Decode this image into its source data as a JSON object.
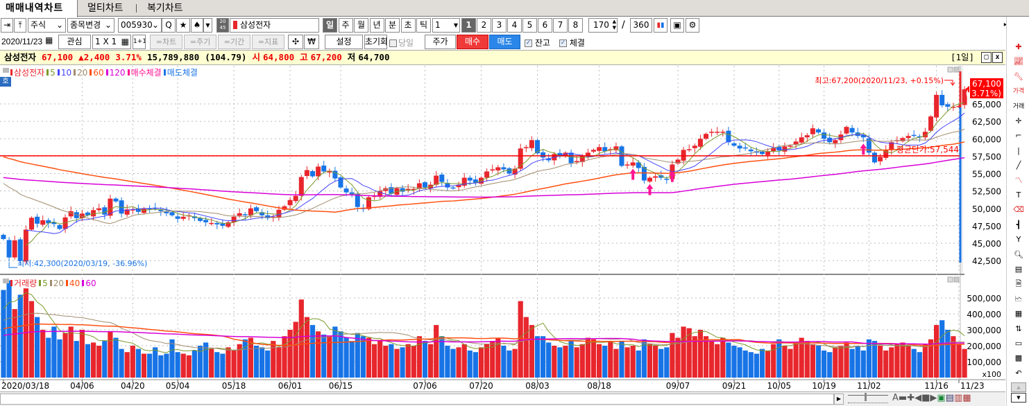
{
  "tabs": [
    "매매내역차트",
    "멀티차트",
    "복기차트"
  ],
  "toolbar": {
    "market": "주식",
    "change_stock": "종목변경",
    "code": "005930",
    "stock_name": "삼성전자",
    "mini_icon": "20\n45",
    "periods": [
      "일",
      "주",
      "월",
      "년",
      "분",
      "초",
      "틱"
    ],
    "period_count": "1",
    "nums": [
      "1",
      "2",
      "3",
      "4",
      "5",
      "6",
      "7",
      "8"
    ],
    "bars": "170",
    "total": "360",
    "slash": "/",
    "u_label": "U",
    "date": "2020/11/23",
    "watch": "관심",
    "layout": "1 X 1",
    "one_plus": "1+1",
    "eq_buttons": [
      "=차트",
      "=주기",
      "=기간",
      "=지표"
    ],
    "settings": "설정",
    "reset": "초기화",
    "today": "당일",
    "price": "주가",
    "buy": "매수",
    "sell": "매도",
    "balance": "잔고",
    "filled": "체결"
  },
  "info": {
    "name": "삼성전자",
    "price": "67,100",
    "change": "▲2,400",
    "pct": "3.71%",
    "volume": "15,789,880",
    "vol_ratio": "(104.79)",
    "open_label": "시",
    "open": "64,800",
    "high_label": "고",
    "high": "67,200",
    "low_label": "저",
    "low": "64,700",
    "period_tag": "[1일]"
  },
  "price_legend": [
    "삼성전자",
    "5",
    "10",
    "20",
    "60",
    "120",
    "매수체결",
    "매도체결"
  ],
  "volume_legend": [
    "거래량",
    "5",
    "20",
    "40",
    "60"
  ],
  "colors": {
    "up": "#e8262d",
    "down": "#1874e6",
    "ma5": "#7a9a2a",
    "ma10": "#4444ff",
    "ma20": "#a08c6c",
    "ma60": "#ff5010",
    "ma120": "#d800d8",
    "buy_arrow": "#ff1493",
    "avg": "#ff0000"
  },
  "annotations": {
    "high": "최고:67,200(2020/11/23, +0.15%)",
    "low": "최저:42,300(2020/03/19, -36.96%)",
    "avg": "평균단가:57,544",
    "avg_value": 57544,
    "high_value": 67200,
    "low_value": 42300,
    "current": "67,100",
    "current_pct": "( 3.71%)"
  },
  "chart_data": {
    "type": "candlestick",
    "price_ticks": [
      "65,000",
      "62,500",
      "60,000",
      "57,500",
      "55,000",
      "52,500",
      "50,000",
      "47,500",
      "45,000",
      "42,500"
    ],
    "price_tick_values": [
      65000,
      62500,
      60000,
      57500,
      55000,
      52500,
      50000,
      47500,
      45000,
      42500
    ],
    "volume_ticks": [
      "500,000",
      "400,000",
      "300,000",
      "200,000",
      "100,000"
    ],
    "volume_tick_values": [
      500000,
      400000,
      300000,
      200000,
      100000
    ],
    "volume_unit": "x100",
    "date_labels": [
      {
        "i": 0,
        "t": "2020/03/18"
      },
      {
        "i": 14,
        "t": "04/06"
      },
      {
        "i": 23,
        "t": "04/20"
      },
      {
        "i": 31,
        "t": "05/04"
      },
      {
        "i": 41,
        "t": "05/18"
      },
      {
        "i": 51,
        "t": "06/01"
      },
      {
        "i": 60,
        "t": "06/15"
      },
      {
        "i": 75,
        "t": "07/06"
      },
      {
        "i": 85,
        "t": "07/20"
      },
      {
        "i": 95,
        "t": "08/03"
      },
      {
        "i": 106,
        "t": "08/18"
      },
      {
        "i": 120,
        "t": "09/07"
      },
      {
        "i": 130,
        "t": "09/21"
      },
      {
        "i": 138,
        "t": "10/05"
      },
      {
        "i": 146,
        "t": "10/19"
      },
      {
        "i": 154,
        "t": "11/02"
      },
      {
        "i": 166,
        "t": "11/16"
      },
      {
        "i": 170,
        "t": "11/23"
      }
    ],
    "first_open": 46200,
    "closes": [
      45600,
      42950,
      45400,
      42500,
      46950,
      48650,
      47800,
      48300,
      47850,
      47750,
      47050,
      48700,
      49600,
      48600,
      49250,
      49000,
      49750,
      50000,
      49100,
      51400,
      51000,
      49250,
      49850,
      49850,
      49500,
      50000,
      49950,
      50000,
      49600,
      49300,
      49000,
      48500,
      48800,
      49000,
      48600,
      48200,
      48000,
      47900,
      47700,
      47500,
      48000,
      48800,
      49300,
      49000,
      50000,
      49600,
      49000,
      48600,
      48800,
      49800,
      50300,
      51200,
      51800,
      54500,
      55500,
      54600,
      56000,
      55300,
      55400,
      54300,
      53000,
      52300,
      51900,
      50200,
      49900,
      51600,
      51800,
      52500,
      52900,
      52100,
      52900,
      52400,
      52800,
      52800,
      53600,
      53000,
      53400,
      54700,
      53800,
      53000,
      52900,
      53400,
      54400,
      54000,
      53700,
      54400,
      55300,
      55600,
      55900,
      55600,
      55000,
      55700,
      58600,
      58800,
      59800,
      57900,
      57300,
      56900,
      57800,
      57600,
      58000,
      56500,
      56800,
      57500,
      58000,
      58400,
      58800,
      58200,
      58500,
      58900,
      56100,
      56300,
      56600,
      55800,
      54000,
      54400,
      54600,
      54400,
      54200,
      56300,
      57000,
      58400,
      58500,
      59000,
      60000,
      60700,
      61000,
      61000,
      61000,
      59500,
      59000,
      58600,
      58600,
      58200,
      58000,
      57800,
      58200,
      58700,
      58300,
      58900,
      59000,
      59600,
      60200,
      60500,
      61500,
      60900,
      60000,
      59500,
      59800,
      60600,
      61700,
      60900,
      60400,
      60200,
      58000,
      56600,
      57400,
      58400,
      59500,
      59800,
      60100,
      60400,
      60500,
      60200,
      61000,
      63200,
      66300,
      64800,
      64600,
      64600,
      64700,
      67100
    ],
    "volumes": [
      550,
      610,
      430,
      520,
      560,
      480,
      380,
      300,
      250,
      320,
      240,
      280,
      320,
      230,
      300,
      210,
      220,
      200,
      230,
      290,
      250,
      180,
      160,
      200,
      180,
      150,
      150,
      190,
      140,
      150,
      240,
      160,
      150,
      140,
      170,
      200,
      220,
      180,
      160,
      150,
      190,
      170,
      210,
      240,
      250,
      200,
      190,
      170,
      230,
      190,
      260,
      300,
      350,
      490,
      380,
      330,
      290,
      270,
      260,
      320,
      290,
      250,
      230,
      280,
      260,
      250,
      210,
      230,
      200,
      210,
      180,
      190,
      210,
      200,
      260,
      230,
      210,
      330,
      260,
      200,
      180,
      190,
      210,
      170,
      160,
      190,
      210,
      230,
      250,
      200,
      170,
      180,
      480,
      380,
      330,
      260,
      260,
      220,
      200,
      190,
      200,
      230,
      190,
      210,
      250,
      240,
      210,
      200,
      230,
      180,
      230,
      190,
      200,
      170,
      240,
      210,
      200,
      180,
      190,
      280,
      250,
      320,
      310,
      260,
      300,
      260,
      230,
      210,
      250,
      220,
      200,
      190,
      170,
      160,
      150,
      180,
      170,
      210,
      240,
      200,
      180,
      220,
      250,
      230,
      210,
      200,
      170,
      160,
      190,
      200,
      220,
      180,
      200,
      170,
      240,
      230,
      200,
      170,
      190,
      210,
      220,
      200,
      180,
      160,
      210,
      240,
      330,
      360,
      300,
      260,
      210,
      180
    ],
    "ma_lines": [
      {
        "period": 5,
        "key": "ma5",
        "seed": 45000
      },
      {
        "period": 10,
        "key": "ma10",
        "seed": 49000
      },
      {
        "period": 20,
        "key": "ma20",
        "seed": 54000
      },
      {
        "period": 60,
        "key": "ma60",
        "seed": 57600
      },
      {
        "period": 120,
        "key": "ma120",
        "seed": 54500
      }
    ],
    "vol_ma_lines": [
      {
        "period": 5,
        "key": "ma5",
        "seed": 400
      },
      {
        "period": 20,
        "key": "ma20",
        "seed": 350
      },
      {
        "period": 40,
        "key": "ma60",
        "seed": 300
      },
      {
        "period": 60,
        "key": "ma120",
        "seed": 260
      }
    ],
    "buy_fills": [
      112,
      115,
      119,
      153
    ]
  }
}
